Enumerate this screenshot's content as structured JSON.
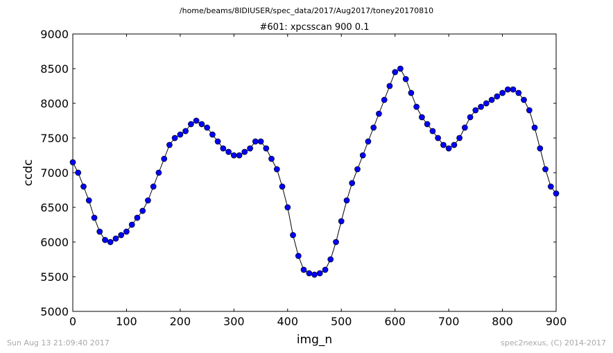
{
  "figure": {
    "suptitle": "/home/beams/8IDIUSER/spec_data/2017/Aug2017/toney20170810",
    "footer_left": "Sun Aug 13 21:09:40 2017",
    "footer_right": "spec2nexus, (C) 2014-2017"
  },
  "chart_data": {
    "type": "scatter",
    "title": "#601: xpcsscan 900 0.1",
    "xlabel": "img_n",
    "ylabel": "ccdc",
    "xlim": [
      0,
      900
    ],
    "ylim": [
      5000,
      9000
    ],
    "xticks": [
      0,
      100,
      200,
      300,
      400,
      500,
      600,
      700,
      800,
      900
    ],
    "yticks": [
      5000,
      5500,
      6000,
      6500,
      7000,
      7500,
      8000,
      8500,
      9000
    ],
    "grid": false,
    "legend": "none",
    "marker_color": "#0000ff",
    "line_color": "#000000",
    "series": [
      {
        "x": [
          0,
          10,
          20,
          30,
          40,
          50,
          60,
          70,
          80,
          90,
          100,
          110,
          120,
          130,
          140,
          150,
          160,
          170,
          180,
          190,
          200,
          210,
          220,
          230,
          240,
          250,
          260,
          270,
          280,
          290,
          300,
          310,
          320,
          330,
          340,
          350,
          360,
          370,
          380,
          390,
          400,
          410,
          420,
          430,
          440,
          450,
          460,
          470,
          480,
          490,
          500,
          510,
          520,
          530,
          540,
          550,
          560,
          570,
          580,
          590,
          600,
          610,
          620,
          630,
          640,
          650,
          660,
          670,
          680,
          690,
          700,
          710,
          720,
          730,
          740,
          750,
          760,
          770,
          780,
          790,
          800,
          810,
          820,
          830,
          840,
          850,
          860,
          870,
          880,
          890,
          900
        ],
        "y": [
          7150,
          7000,
          6800,
          6600,
          6350,
          6150,
          6030,
          6000,
          6050,
          6100,
          6150,
          6250,
          6350,
          6450,
          6600,
          6800,
          7000,
          7200,
          7400,
          7500,
          7550,
          7600,
          7700,
          7750,
          7700,
          7650,
          7550,
          7450,
          7350,
          7300,
          7250,
          7250,
          7300,
          7350,
          7450,
          7450,
          7350,
          7200,
          7050,
          6800,
          6500,
          6100,
          5800,
          5600,
          5550,
          5530,
          5550,
          5600,
          5750,
          6000,
          6300,
          6600,
          6850,
          7050,
          7250,
          7450,
          7650,
          7850,
          8050,
          8250,
          8450,
          8500,
          8350,
          8150,
          7950,
          7800,
          7700,
          7600,
          7500,
          7400,
          7350,
          7400,
          7500,
          7650,
          7800,
          7900,
          7950,
          8000,
          8050,
          8100,
          8150,
          8200,
          8200,
          8150,
          8050,
          7900,
          7650,
          7350,
          7050,
          6800,
          6700
        ]
      }
    ]
  }
}
